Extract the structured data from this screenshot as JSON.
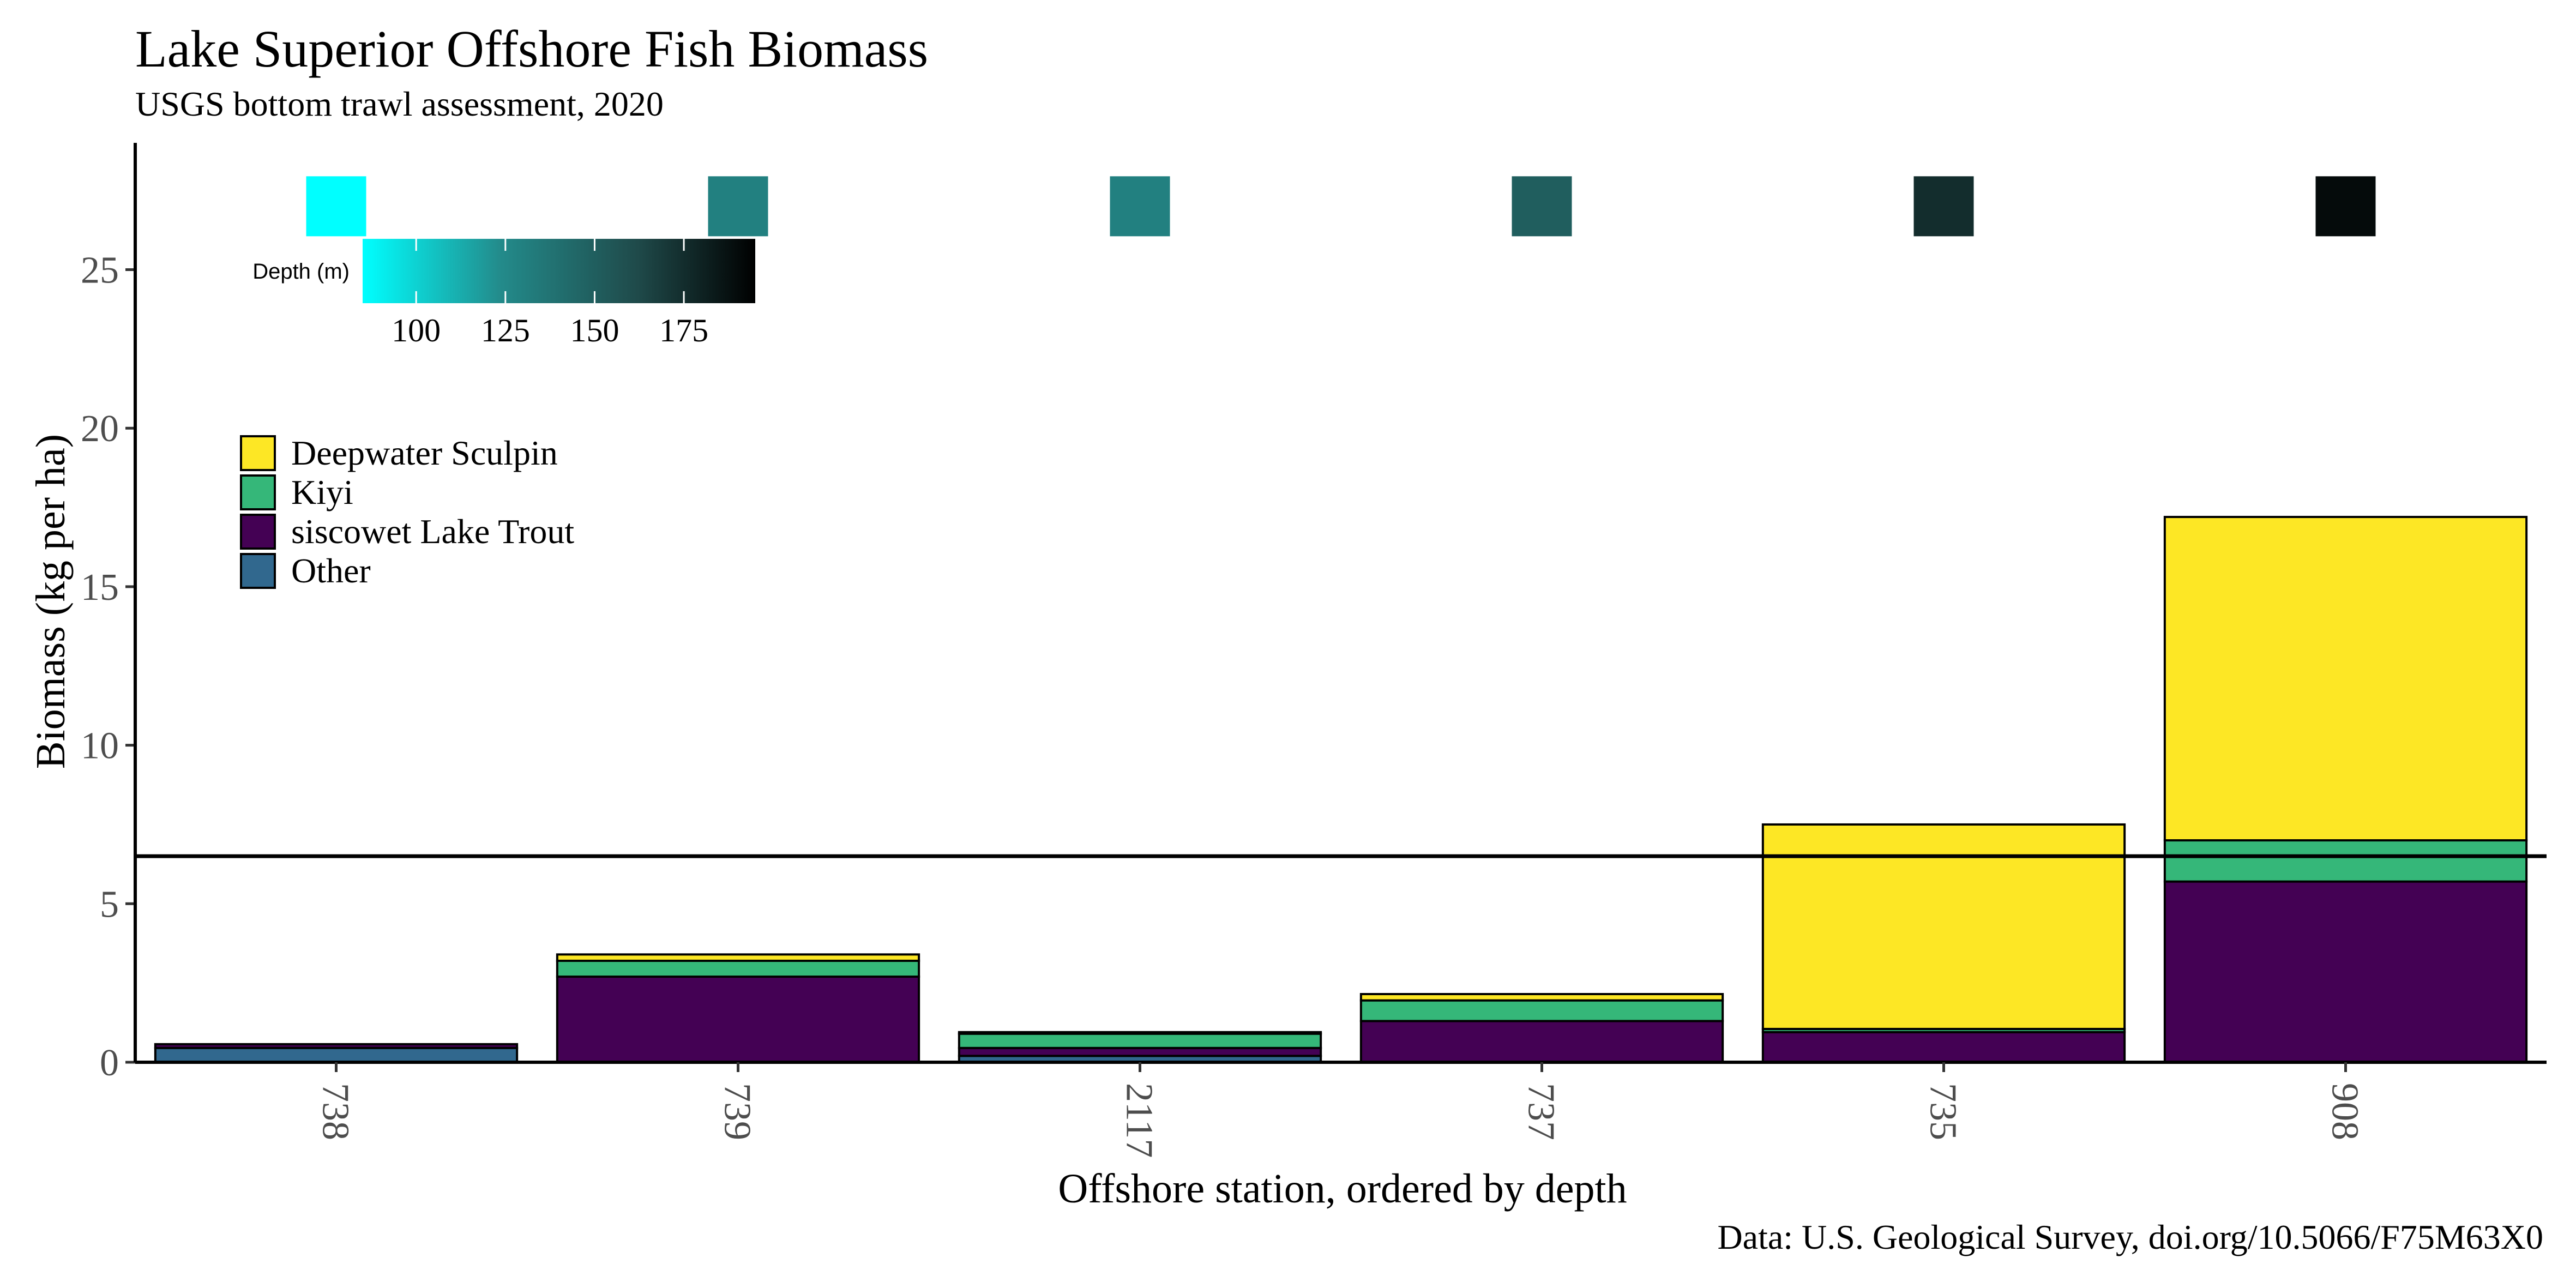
{
  "chart_data": {
    "type": "bar",
    "stacked": true,
    "title": "Lake Superior Offshore Fish Biomass",
    "subtitle": "USGS bottom trawl assessment,  2020",
    "xlabel": "Offshore station, ordered by depth",
    "ylabel": "Biomass (kg per ha)",
    "caption": "Data: U.S. Geological Survey, doi.org/10.5066/F75M63X0",
    "categories": [
      "738",
      "739",
      "2117",
      "737",
      "735",
      "908"
    ],
    "ylim": [
      0,
      29
    ],
    "yticks": [
      0,
      5,
      10,
      15,
      20,
      25
    ],
    "reference_line": 6.5,
    "series": [
      {
        "name": "Other",
        "color": "#31688e",
        "values": [
          0.45,
          0.0,
          0.2,
          0.0,
          0.0,
          0.0
        ]
      },
      {
        "name": "siscowet Lake Trout",
        "color": "#440154",
        "values": [
          0.12,
          2.7,
          0.25,
          1.3,
          0.95,
          5.7
        ]
      },
      {
        "name": "Kiyi",
        "color": "#35b779",
        "values": [
          0.0,
          0.5,
          0.45,
          0.65,
          0.1,
          1.3
        ]
      },
      {
        "name": "Deepwater Sculpin",
        "color": "#fde725",
        "values": [
          0.0,
          0.2,
          0.05,
          0.2,
          6.45,
          10.2
        ]
      }
    ],
    "depth": {
      "title": "Depth (m)",
      "values": [
        85,
        130,
        130,
        150,
        175,
        190
      ],
      "ticks": [
        100,
        125,
        150,
        175
      ],
      "range": [
        85,
        195
      ],
      "marker_y": 27
    },
    "legend": {
      "placement": "top-left",
      "order": [
        "Deepwater Sculpin",
        "Kiyi",
        "siscowet Lake Trout",
        "Other"
      ]
    }
  }
}
